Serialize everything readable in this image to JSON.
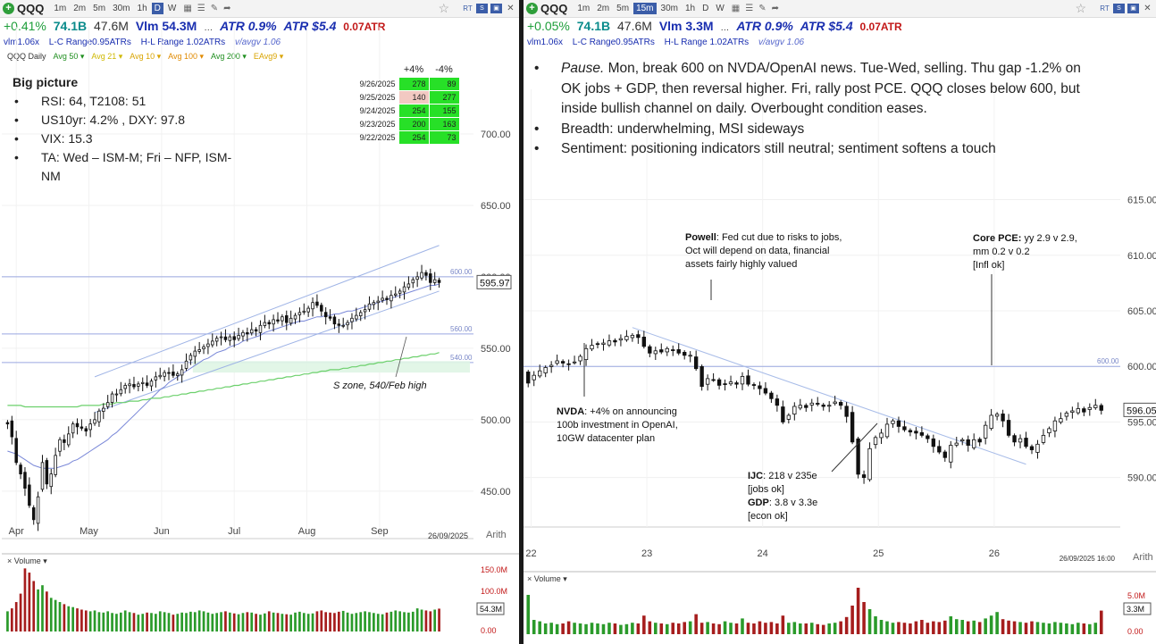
{
  "symbol": "QQQ",
  "left": {
    "toolbar": {
      "symbol": "QQQ",
      "intervals": [
        "1m",
        "2m",
        "5m",
        "30m",
        "1h",
        "D",
        "W"
      ],
      "active": "D"
    },
    "stats": {
      "change": "+0.41%",
      "mktcap": "74.1B",
      "shares": "47.6M",
      "volume": "Vlm 54.3M",
      "dots": "…",
      "atr_pct": "ATR 0.9%",
      "atr_abs": "ATR $5.4",
      "atr_extra": "0.07ATR"
    },
    "sub": {
      "vlm": "vlm1.06x",
      "lc": "L-C Range0.95ATRs",
      "hl": "H-L Range 1.02ATRs",
      "avgv": "v/avgv 1.06"
    },
    "legend": {
      "name": "QQQ Daily",
      "items": [
        "Avg 50",
        "Avg 21",
        "Avg 10",
        "Avg 100",
        "Avg 200",
        "EAvg9"
      ]
    },
    "big_picture": {
      "title": "Big picture",
      "bullets": [
        "RSI: 64, T2108: 51",
        "US10yr: 4.2% , DXY: 97.8",
        "VIX: 15.3",
        "TA: Wed – ISM-M; Fri – NFP, ISM-NM"
      ]
    },
    "breadth_table": {
      "headers": [
        "+4%",
        "-4%"
      ],
      "rows": [
        {
          "date": "9/26/2025",
          "up": "278",
          "down": "89"
        },
        {
          "date": "9/25/2025",
          "up": "140",
          "down": "277"
        },
        {
          "date": "9/24/2025",
          "up": "254",
          "down": "155"
        },
        {
          "date": "9/23/2025",
          "up": "200",
          "down": "163"
        },
        {
          "date": "9/22/2025",
          "up": "254",
          "down": "73"
        }
      ]
    },
    "annotation": "S zone, 540/Feb high",
    "date_stamp": "26/09/2025",
    "scale": "Arith",
    "volume_label": "Volume",
    "volume_close": "54.3M"
  },
  "right": {
    "toolbar": {
      "symbol": "QQQ",
      "intervals": [
        "1m",
        "2m",
        "5m",
        "15m",
        "30m",
        "1h",
        "D",
        "W"
      ],
      "active": "15m"
    },
    "stats": {
      "change": "+0.05%",
      "mktcap": "74.1B",
      "shares": "47.6M",
      "volume": "Vlm 3.3M",
      "dots": "…",
      "atr_pct": "ATR 0.9%",
      "atr_abs": "ATR $5.4",
      "atr_extra": "0.07ATR"
    },
    "sub": {
      "vlm": "vlm1.06x",
      "lc": "L-C Range0.95ATRs",
      "hl": "H-L Range 1.02ATRs",
      "avgv": "v/avgv 1.06"
    },
    "notes": [
      {
        "lead": "Pause.",
        "text": "  Mon, break 600 on NVDA/OpenAI news.  Tue-Wed, selling.  Thu gap -1.2% on OK jobs + GDP, then reversal higher.  Fri, rally post PCE.  QQQ closes below 600, but inside bullish channel on daily.  Overbought condition eases."
      },
      {
        "lead": "",
        "text": "Breadth: underwhelming, MSI sideways"
      },
      {
        "lead": "",
        "text": "Sentiment: positioning indicators still neutral; sentiment softens a touch"
      }
    ],
    "annotations": {
      "powell": {
        "bold": "Powell",
        "text": ": Fed cut due to risks to jobs, Oct will depend on data, financial assets fairly highly valued"
      },
      "nvda": {
        "bold": "NVDA",
        "text": ": +4% on announcing 100b investment in OpenAI, 10GW datacenter plan"
      },
      "ijc": {
        "bold": "IJC",
        "text": ": 218 v 235e",
        "sub": "[jobs ok]"
      },
      "gdp": {
        "bold": "GDP",
        "text": ": 3.8 v 3.3e",
        "sub": "[econ ok]"
      },
      "pce": {
        "bold": "Core PCE:",
        "text": " yy 2.9 v 2.9, mm 0.2 v 0.2",
        "sub": "[Infl ok]"
      }
    },
    "date_stamp": "26/09/2025 16:00",
    "scale": "Arith",
    "volume_label": "Volume",
    "volume_close": "3.3M"
  },
  "chart_data": [
    {
      "type": "candlestick",
      "title": "QQQ Daily",
      "x_labels": [
        "Apr",
        "May",
        "Jun",
        "Jul",
        "Aug",
        "Sep"
      ],
      "y_ticks": [
        450,
        500,
        550,
        600,
        650,
        700
      ],
      "ylim": [
        428,
        725
      ],
      "last_price": 595.97,
      "hlines": [
        {
          "value": 600,
          "label": "600.00"
        },
        {
          "value": 560,
          "label": "560.00"
        },
        {
          "value": 540,
          "label": "540.00"
        }
      ],
      "support_zone": [
        533,
        541
      ],
      "closes": [
        497,
        488,
        470,
        462,
        452,
        440,
        430,
        446,
        470,
        455,
        462,
        475,
        486,
        484,
        490,
        497,
        495,
        494,
        492,
        497,
        500,
        506,
        508,
        512,
        518,
        518,
        521,
        524,
        525,
        523,
        525,
        526,
        524,
        527,
        530,
        531,
        533,
        533,
        531,
        532,
        535,
        541,
        545,
        548,
        549,
        551,
        553,
        555,
        557,
        558,
        556,
        558,
        556,
        559,
        561,
        560,
        563,
        562,
        566,
        568,
        567,
        570,
        569,
        572,
        568,
        571,
        573,
        575,
        576,
        578,
        582,
        580,
        576,
        572,
        571,
        567,
        566,
        566,
        568,
        571,
        573,
        575,
        577,
        581,
        582,
        583,
        585,
        584,
        587,
        588,
        590,
        593,
        595,
        598,
        600,
        603,
        601,
        596,
        598,
        595.97
      ],
      "ma50": [
        478,
        477,
        476,
        474,
        472,
        470,
        468,
        467,
        466,
        466,
        466,
        466,
        467,
        468,
        469,
        471,
        472,
        474,
        476,
        478,
        480,
        482,
        484,
        486,
        489,
        491,
        494,
        497,
        500,
        503,
        506,
        509,
        512,
        515,
        518,
        521,
        523,
        526,
        528,
        530,
        532,
        534,
        536,
        538,
        540,
        542,
        543,
        545,
        547,
        548,
        549,
        551,
        552,
        553,
        555,
        556,
        557,
        558,
        559,
        561,
        562,
        563,
        564,
        565,
        566,
        567,
        568,
        569,
        569,
        570,
        571,
        572,
        572,
        573,
        573,
        574,
        574,
        575,
        576,
        576,
        577,
        578,
        579,
        580,
        581,
        582,
        583,
        584,
        585,
        586,
        587,
        588,
        589,
        590,
        591,
        592,
        593,
        594,
        594,
        595
      ],
      "ma200": [
        510,
        510,
        510,
        510,
        509,
        509,
        509,
        509,
        509,
        509,
        509,
        509,
        509,
        509,
        509,
        509,
        509,
        510,
        510,
        510,
        510,
        510,
        511,
        511,
        511,
        512,
        512,
        512,
        513,
        513,
        513,
        514,
        514,
        515,
        515,
        515,
        516,
        516,
        517,
        517,
        518,
        518,
        519,
        519,
        520,
        520,
        521,
        521,
        522,
        522,
        523,
        523,
        524,
        524,
        525,
        525,
        526,
        526,
        527,
        527,
        528,
        528,
        529,
        529,
        530,
        530,
        531,
        531,
        532,
        532,
        533,
        533,
        534,
        534,
        535,
        535,
        535,
        536,
        536,
        537,
        537,
        538,
        538,
        539,
        539,
        540,
        540,
        541,
        541,
        542,
        542,
        543,
        543,
        544,
        544,
        545,
        545,
        546,
        546,
        547
      ],
      "volume": [
        48,
        55,
        70,
        90,
        150,
        140,
        120,
        100,
        110,
        95,
        80,
        75,
        70,
        65,
        60,
        58,
        55,
        52,
        50,
        48,
        50,
        46,
        45,
        48,
        44,
        42,
        45,
        50,
        46,
        44,
        40,
        42,
        45,
        44,
        42,
        48,
        46,
        44,
        40,
        42,
        45,
        44,
        47,
        46,
        50,
        48,
        45,
        42,
        44,
        46,
        48,
        45,
        43,
        41,
        44,
        46,
        45,
        42,
        40,
        43,
        48,
        45,
        44,
        42,
        41,
        40,
        45,
        47,
        44,
        42,
        43,
        48,
        50,
        46,
        45,
        44,
        47,
        49,
        45,
        42,
        44,
        46,
        48,
        46,
        44,
        42,
        41,
        45,
        47,
        50,
        48,
        46,
        45,
        47,
        55,
        52,
        50,
        48,
        52,
        54.3
      ],
      "volume_ticks": [
        "150.0M",
        "100.0M",
        "0.00"
      ]
    },
    {
      "type": "candlestick",
      "title": "QQQ 15m",
      "x_labels": [
        "22",
        "23",
        "24",
        "25",
        "26"
      ],
      "y_ticks": [
        590,
        595,
        600,
        605,
        610,
        615
      ],
      "ylim": [
        587,
        618.5
      ],
      "last_price": 596.05,
      "hlines": [
        {
          "value": 600,
          "label": "600.00"
        }
      ],
      "closes": [
        598.5,
        599.2,
        599.6,
        599.9,
        600.1,
        600.5,
        600.3,
        600.2,
        600.4,
        600.9,
        601.6,
        601.9,
        602.0,
        602.1,
        602.3,
        602.2,
        602.5,
        602.7,
        602.8,
        602.6,
        601.8,
        601.2,
        601.4,
        601.3,
        601.6,
        601.5,
        601.2,
        601.0,
        601.0,
        599.8,
        598.2,
        598.9,
        598.8,
        598.3,
        598.4,
        598.6,
        598.4,
        599.1,
        598.4,
        598.3,
        598.0,
        597.6,
        597.1,
        596.5,
        595.0,
        595.6,
        596.4,
        596.5,
        596.3,
        596.7,
        596.6,
        596.4,
        596.5,
        596.8,
        596.5,
        595.5,
        593.2,
        590.3,
        590.0,
        592.6,
        593.6,
        594.0,
        594.8,
        595.1,
        594.6,
        594.3,
        594.1,
        594.0,
        593.8,
        593.5,
        592.8,
        592.3,
        591.8,
        592.9,
        593.1,
        593.4,
        592.9,
        593.4,
        593.2,
        594.7,
        595.6,
        595.7,
        595.1,
        593.8,
        593.2,
        593.5,
        592.8,
        592.5,
        593.0,
        593.8,
        594.4,
        595.1,
        595.3,
        595.8,
        596.0,
        596.2,
        595.9,
        596.3,
        596.5,
        596.05
      ],
      "volume": [
        5.5,
        2,
        1.8,
        1.5,
        1.6,
        1.4,
        1.5,
        1.8,
        1.6,
        1.5,
        1.4,
        1.6,
        1.5,
        1.4,
        1.6,
        1.5,
        1.3,
        1.4,
        1.6,
        1.5,
        2.6,
        1.8,
        1.6,
        1.5,
        1.4,
        1.6,
        1.5,
        1.7,
        1.8,
        2.8,
        1.6,
        1.7,
        1.5,
        1.4,
        1.8,
        1.6,
        1.5,
        2.2,
        1.6,
        1.5,
        1.8,
        1.6,
        1.7,
        1.5,
        2.6,
        1.6,
        1.7,
        1.5,
        1.5,
        1.6,
        1.4,
        1.3,
        1.5,
        1.6,
        1.8,
        2.4,
        4,
        6.5,
        4.5,
        3.5,
        2.5,
        2,
        1.8,
        1.6,
        1.7,
        1.6,
        1.5,
        1.8,
        2,
        1.6,
        1.8,
        1.7,
        1.9,
        2.5,
        2.1,
        2,
        1.8,
        1.9,
        1.7,
        2.2,
        2.6,
        3.1,
        2.1,
        1.9,
        1.8,
        1.7,
        1.6,
        1.8,
        1.7,
        1.6,
        1.5,
        1.7,
        1.6,
        1.5,
        1.4,
        1.6,
        1.5,
        1.4,
        1.6,
        3.3
      ],
      "volume_ticks": [
        "5.0M",
        "0.00"
      ]
    }
  ]
}
